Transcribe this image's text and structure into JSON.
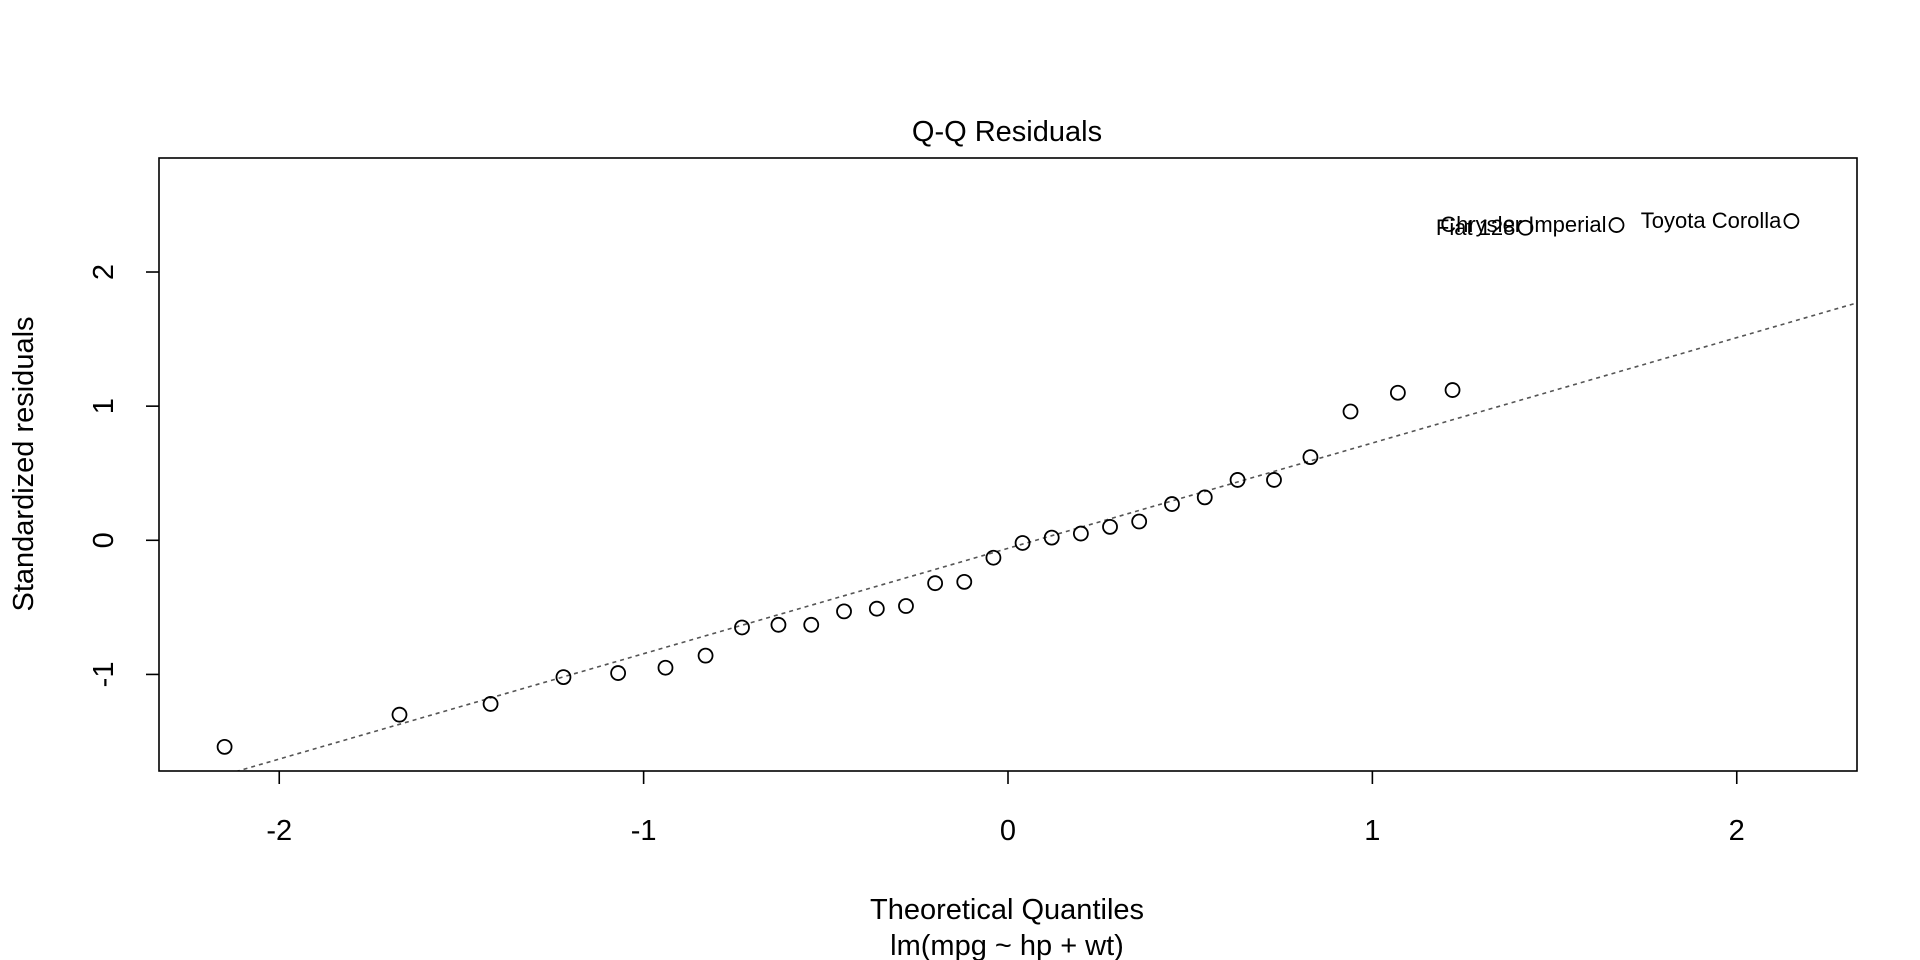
{
  "chart_data": {
    "type": "scatter",
    "title": "Q-Q Residuals",
    "xlabel": "Theoretical Quantiles",
    "sublabel": "lm(mpg ~ hp + wt)",
    "ylabel": "Standardized residuals",
    "xlim": [
      -2.33,
      2.33
    ],
    "ylim": [
      -1.72,
      2.85
    ],
    "x_ticks": [
      -2,
      -1,
      0,
      1,
      2
    ],
    "y_ticks": [
      -1,
      0,
      1,
      2
    ],
    "x_tick_labels": [
      "-2",
      "-1",
      "0",
      "1",
      "2"
    ],
    "y_tick_labels": [
      "-1",
      "0",
      "1",
      "2"
    ],
    "grid": false,
    "reference_line": {
      "x1": -2.33,
      "y1": -1.89,
      "x2": 2.33,
      "y2": 1.77
    },
    "points": [
      {
        "x": -2.15,
        "y": -1.54
      },
      {
        "x": -1.67,
        "y": -1.3
      },
      {
        "x": -1.42,
        "y": -1.22
      },
      {
        "x": -1.22,
        "y": -1.02
      },
      {
        "x": -1.07,
        "y": -0.99
      },
      {
        "x": -0.94,
        "y": -0.95
      },
      {
        "x": -0.83,
        "y": -0.86
      },
      {
        "x": -0.73,
        "y": -0.65
      },
      {
        "x": -0.63,
        "y": -0.63
      },
      {
        "x": -0.54,
        "y": -0.63
      },
      {
        "x": -0.45,
        "y": -0.53
      },
      {
        "x": -0.36,
        "y": -0.51
      },
      {
        "x": -0.28,
        "y": -0.49
      },
      {
        "x": -0.2,
        "y": -0.32
      },
      {
        "x": -0.12,
        "y": -0.31
      },
      {
        "x": -0.04,
        "y": -0.13
      },
      {
        "x": 0.04,
        "y": -0.02
      },
      {
        "x": 0.12,
        "y": 0.02
      },
      {
        "x": 0.2,
        "y": 0.05
      },
      {
        "x": 0.28,
        "y": 0.1
      },
      {
        "x": 0.36,
        "y": 0.14
      },
      {
        "x": 0.45,
        "y": 0.27
      },
      {
        "x": 0.54,
        "y": 0.32
      },
      {
        "x": 0.63,
        "y": 0.45
      },
      {
        "x": 0.73,
        "y": 0.45
      },
      {
        "x": 0.83,
        "y": 0.62
      },
      {
        "x": 0.94,
        "y": 0.96
      },
      {
        "x": 1.07,
        "y": 1.1
      },
      {
        "x": 1.22,
        "y": 1.12
      },
      {
        "x": 1.42,
        "y": 2.33,
        "label": "Fiat 128"
      },
      {
        "x": 1.67,
        "y": 2.35,
        "label": "Chrysler Imperial"
      },
      {
        "x": 2.15,
        "y": 2.38,
        "label": "Toyota Corolla"
      }
    ]
  }
}
